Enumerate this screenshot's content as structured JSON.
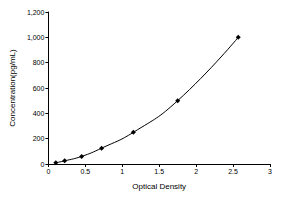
{
  "chart_data": {
    "type": "line",
    "x_label": "Optical Density",
    "y_label": "Concentration(pg/mL)",
    "x": [
      0.1,
      0.22,
      0.45,
      0.72,
      1.15,
      1.75,
      2.57
    ],
    "values": [
      10,
      25,
      60,
      125,
      250,
      500,
      1000
    ],
    "color": "#000000",
    "marker": "diamond",
    "line_style": "solid",
    "xlim": [
      0,
      3
    ],
    "xticks": [
      0,
      0.5,
      1,
      1.5,
      2,
      2.5,
      3
    ],
    "ylim": [
      0,
      1200
    ],
    "yticks": [
      0,
      200,
      400,
      600,
      800,
      1000,
      1200
    ],
    "grid": false
  }
}
